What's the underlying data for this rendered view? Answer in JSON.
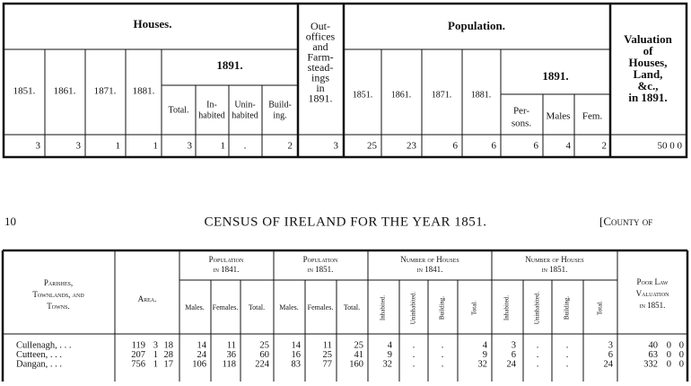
{
  "top_table": {
    "houses_title": "Houses.",
    "houses_years": [
      "1851.",
      "1861.",
      "1871.",
      "1881."
    ],
    "houses_1891": "1891.",
    "houses_1891_cols": [
      [
        "Total."
      ],
      [
        "In-",
        "habited"
      ],
      [
        "Unin-",
        "habited"
      ],
      [
        "Build-",
        "ing."
      ]
    ],
    "out_offices": [
      "Out-",
      "offices",
      "and",
      "Farm-",
      "stead-",
      "ings",
      "in",
      "1891."
    ],
    "population_title": "Population.",
    "population_years": [
      "1851.",
      "1861.",
      "1871.",
      "1881."
    ],
    "population_1891": "1891.",
    "population_1891_cols": [
      [
        "Per-",
        "sons."
      ],
      [
        "Males"
      ],
      [
        "Fem."
      ]
    ],
    "valuation": [
      "Valuation",
      "of",
      "Houses,",
      "Land,",
      "&c.,",
      "in 1891."
    ],
    "row": [
      3,
      3,
      1,
      1,
      3,
      1,
      ".",
      2,
      3,
      25,
      23,
      6,
      6,
      6,
      4,
      2,
      "50 0 0"
    ]
  },
  "page_header": {
    "page_number": "10",
    "title": "CENSUS OF IRELAND FOR THE YEAR 1851.",
    "county": "[County of"
  },
  "bottom_table": {
    "place_header": [
      "Parishes,",
      "Townlands, and",
      "Towns."
    ],
    "area_header": "Area.",
    "pop_1841": [
      "Population",
      "in 1841."
    ],
    "pop_1851": [
      "Population",
      "in 1851."
    ],
    "pop_cols": [
      "Males.",
      "Females.",
      "Total."
    ],
    "houses_1841": [
      "Number of Houses",
      "in 1841."
    ],
    "houses_1851": [
      "Number of Houses",
      "in 1851."
    ],
    "house_cols": [
      "Inhabited.",
      "Uninhabited.",
      "Building.",
      "Total."
    ],
    "valuation_header": [
      "Poor Law",
      "Valuation",
      "in 1851."
    ],
    "rows": [
      {
        "name": "Cullenagh,  .   .   .",
        "area": [
          119,
          3,
          18
        ],
        "pop_1841": [
          14,
          11,
          25
        ],
        "pop_1851": [
          14,
          11,
          25
        ],
        "houses_1841": [
          4,
          ".",
          ".",
          4
        ],
        "houses_1851": [
          3,
          ".",
          ".",
          3
        ],
        "valuation": [
          40,
          0,
          0
        ]
      },
      {
        "name": "Cutteen,  .   .   .",
        "area": [
          207,
          1,
          28
        ],
        "pop_1841": [
          24,
          36,
          60
        ],
        "pop_1851": [
          16,
          25,
          41
        ],
        "houses_1841": [
          9,
          ".",
          ".",
          9
        ],
        "houses_1851": [
          6,
          ".",
          ".",
          6
        ],
        "valuation": [
          63,
          0,
          0
        ]
      },
      {
        "name": "Dangan,  .   .   .",
        "area": [
          756,
          1,
          17
        ],
        "pop_1841": [
          106,
          118,
          224
        ],
        "pop_1851": [
          83,
          77,
          160
        ],
        "houses_1841": [
          32,
          ".",
          ".",
          32
        ],
        "houses_1851": [
          24,
          ".",
          ".",
          24
        ],
        "valuation": [
          332,
          0,
          0
        ]
      }
    ]
  }
}
